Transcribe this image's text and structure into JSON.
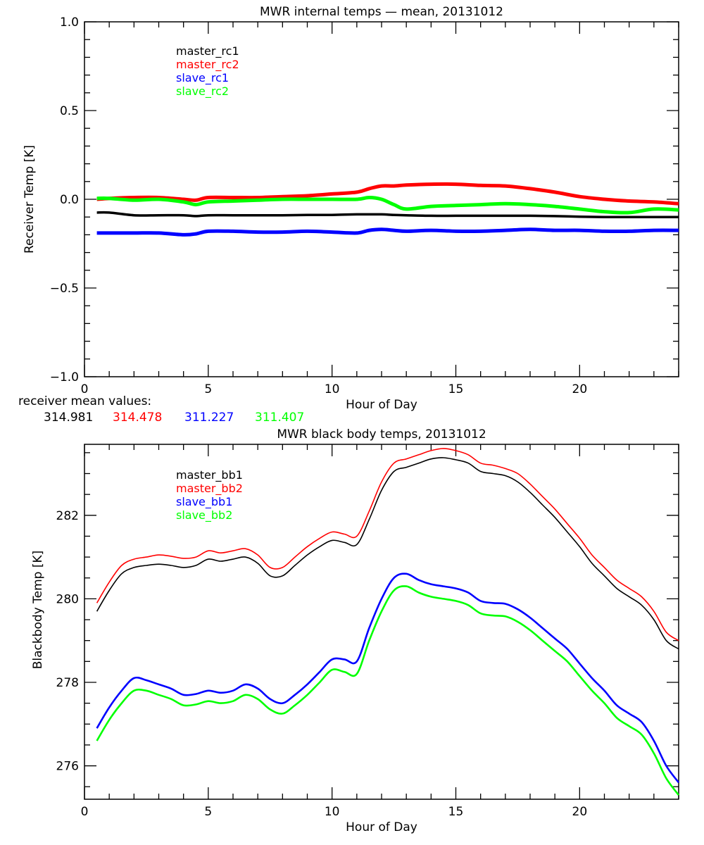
{
  "chart_data": [
    {
      "type": "line",
      "title": "MWR internal temps — mean, 20131012",
      "xlabel": "Hour of Day",
      "ylabel": "Receiver Temp [K]",
      "xlim": [
        0,
        24
      ],
      "ylim": [
        -1.0,
        1.0
      ],
      "xticks": [
        0,
        5,
        10,
        15,
        20
      ],
      "xtick_labels": [
        "0",
        "5",
        "10",
        "15",
        "20"
      ],
      "yticks": [
        -1.0,
        -0.5,
        0.0,
        0.5,
        1.0
      ],
      "ytick_labels": [
        "−1.0",
        "−0.5",
        "0.0",
        "0.5",
        "1.0"
      ],
      "grid": false,
      "legend_position": "top-left",
      "x": [
        0.5,
        1,
        2,
        3,
        4,
        4.5,
        5,
        6,
        7,
        8,
        9,
        10,
        11,
        11.5,
        12,
        12.5,
        13,
        14,
        15,
        16,
        17,
        18,
        19,
        20,
        21,
        22,
        23,
        24
      ],
      "series": [
        {
          "name": "master_rc1",
          "color": "#000000",
          "values": [
            -0.075,
            -0.075,
            -0.09,
            -0.09,
            -0.09,
            -0.095,
            -0.09,
            -0.09,
            -0.09,
            -0.09,
            -0.088,
            -0.088,
            -0.085,
            -0.085,
            -0.085,
            -0.088,
            -0.09,
            -0.093,
            -0.093,
            -0.093,
            -0.093,
            -0.093,
            -0.095,
            -0.098,
            -0.1,
            -0.1,
            -0.1,
            -0.1
          ]
        },
        {
          "name": "master_rc2",
          "color": "#ff0000",
          "values": [
            0.0,
            0.005,
            0.01,
            0.01,
            0.0,
            -0.005,
            0.01,
            0.01,
            0.01,
            0.015,
            0.02,
            0.03,
            0.04,
            0.06,
            0.075,
            0.075,
            0.08,
            0.085,
            0.085,
            0.078,
            0.075,
            0.06,
            0.04,
            0.015,
            0.0,
            -0.01,
            -0.015,
            -0.025
          ]
        },
        {
          "name": "slave_rc1",
          "color": "#0000ff",
          "values": [
            -0.19,
            -0.19,
            -0.19,
            -0.19,
            -0.2,
            -0.195,
            -0.18,
            -0.18,
            -0.185,
            -0.185,
            -0.18,
            -0.185,
            -0.19,
            -0.175,
            -0.17,
            -0.175,
            -0.18,
            -0.175,
            -0.18,
            -0.18,
            -0.175,
            -0.17,
            -0.175,
            -0.175,
            -0.18,
            -0.18,
            -0.175,
            -0.175
          ]
        },
        {
          "name": "slave_rc2",
          "color": "#00ff00",
          "values": [
            0.005,
            0.005,
            -0.005,
            0.0,
            -0.015,
            -0.03,
            -0.015,
            -0.01,
            -0.005,
            0.0,
            0.0,
            0.0,
            0.0,
            0.01,
            0.0,
            -0.03,
            -0.055,
            -0.04,
            -0.035,
            -0.03,
            -0.025,
            -0.03,
            -0.04,
            -0.055,
            -0.07,
            -0.075,
            -0.055,
            -0.06
          ]
        }
      ],
      "annotation": {
        "label": "receiver mean values:",
        "values": [
          {
            "text": "314.981",
            "color": "#000000"
          },
          {
            "text": "314.478",
            "color": "#ff0000"
          },
          {
            "text": "311.227",
            "color": "#0000ff"
          },
          {
            "text": "311.407",
            "color": "#00ff00"
          }
        ]
      }
    },
    {
      "type": "line",
      "title": "MWR black body temps, 20131012",
      "xlabel": "Hour of Day",
      "ylabel": "Blackbody Temp [K]",
      "xlim": [
        0,
        24
      ],
      "ylim": [
        275.2,
        283.7
      ],
      "xticks": [
        0,
        5,
        10,
        15,
        20
      ],
      "xtick_labels": [
        "0",
        "5",
        "10",
        "15",
        "20"
      ],
      "yticks": [
        276,
        278,
        280,
        282
      ],
      "ytick_labels": [
        "276",
        "278",
        "280",
        "282"
      ],
      "grid": false,
      "legend_position": "top-left",
      "x": [
        0.5,
        1,
        1.5,
        2,
        2.5,
        3,
        3.5,
        4,
        4.5,
        5,
        5.5,
        6,
        6.5,
        7,
        7.5,
        8,
        8.5,
        9,
        9.5,
        10,
        10.5,
        11,
        11.5,
        12,
        12.5,
        13,
        13.5,
        14,
        14.5,
        15,
        15.5,
        16,
        16.5,
        17,
        17.5,
        18,
        18.5,
        19,
        19.5,
        20,
        20.5,
        21,
        21.5,
        22,
        22.5,
        23,
        23.5,
        24
      ],
      "series": [
        {
          "name": "master_bb1",
          "color": "#000000",
          "values": [
            279.7,
            280.2,
            280.6,
            280.75,
            280.8,
            280.83,
            280.8,
            280.75,
            280.8,
            280.95,
            280.9,
            280.95,
            281.0,
            280.85,
            280.55,
            280.55,
            280.8,
            281.05,
            281.25,
            281.4,
            281.35,
            281.3,
            281.9,
            282.6,
            283.05,
            283.15,
            283.25,
            283.35,
            283.38,
            283.33,
            283.25,
            283.05,
            283.0,
            282.95,
            282.8,
            282.55,
            282.25,
            281.95,
            281.6,
            281.25,
            280.85,
            280.55,
            280.25,
            280.05,
            279.85,
            279.5,
            279.0,
            278.8
          ]
        },
        {
          "name": "master_bb2",
          "color": "#ff0000",
          "values": [
            279.9,
            280.4,
            280.8,
            280.95,
            281.0,
            281.05,
            281.02,
            280.97,
            281.0,
            281.15,
            281.1,
            281.15,
            281.2,
            281.05,
            280.75,
            280.75,
            281.0,
            281.25,
            281.45,
            281.6,
            281.55,
            281.5,
            282.1,
            282.8,
            283.25,
            283.35,
            283.45,
            283.55,
            283.6,
            283.55,
            283.45,
            283.25,
            283.2,
            283.12,
            283.0,
            282.75,
            282.45,
            282.15,
            281.8,
            281.45,
            281.05,
            280.75,
            280.45,
            280.25,
            280.05,
            279.7,
            279.2,
            279.0
          ]
        },
        {
          "name": "slave_bb1",
          "color": "#0000ff",
          "values": [
            276.9,
            277.4,
            277.8,
            278.1,
            278.05,
            277.95,
            277.85,
            277.7,
            277.72,
            277.8,
            277.75,
            277.8,
            277.95,
            277.85,
            277.6,
            277.5,
            277.7,
            277.95,
            278.25,
            278.55,
            278.55,
            278.5,
            279.3,
            280.0,
            280.5,
            280.6,
            280.45,
            280.35,
            280.3,
            280.25,
            280.15,
            279.95,
            279.9,
            279.88,
            279.75,
            279.55,
            279.3,
            279.05,
            278.8,
            278.45,
            278.1,
            277.8,
            277.45,
            277.25,
            277.05,
            276.6,
            276.0,
            275.6
          ]
        },
        {
          "name": "slave_bb2",
          "color": "#00ff00",
          "values": [
            276.6,
            277.1,
            277.5,
            277.8,
            277.8,
            277.7,
            277.6,
            277.45,
            277.47,
            277.55,
            277.5,
            277.55,
            277.7,
            277.6,
            277.35,
            277.25,
            277.45,
            277.7,
            278.0,
            278.3,
            278.25,
            278.2,
            279.0,
            279.7,
            280.2,
            280.3,
            280.15,
            280.05,
            280.0,
            279.95,
            279.85,
            279.65,
            279.6,
            279.58,
            279.45,
            279.25,
            279.0,
            278.75,
            278.5,
            278.15,
            277.8,
            277.5,
            277.15,
            276.95,
            276.75,
            276.3,
            275.7,
            275.3
          ]
        }
      ]
    }
  ]
}
